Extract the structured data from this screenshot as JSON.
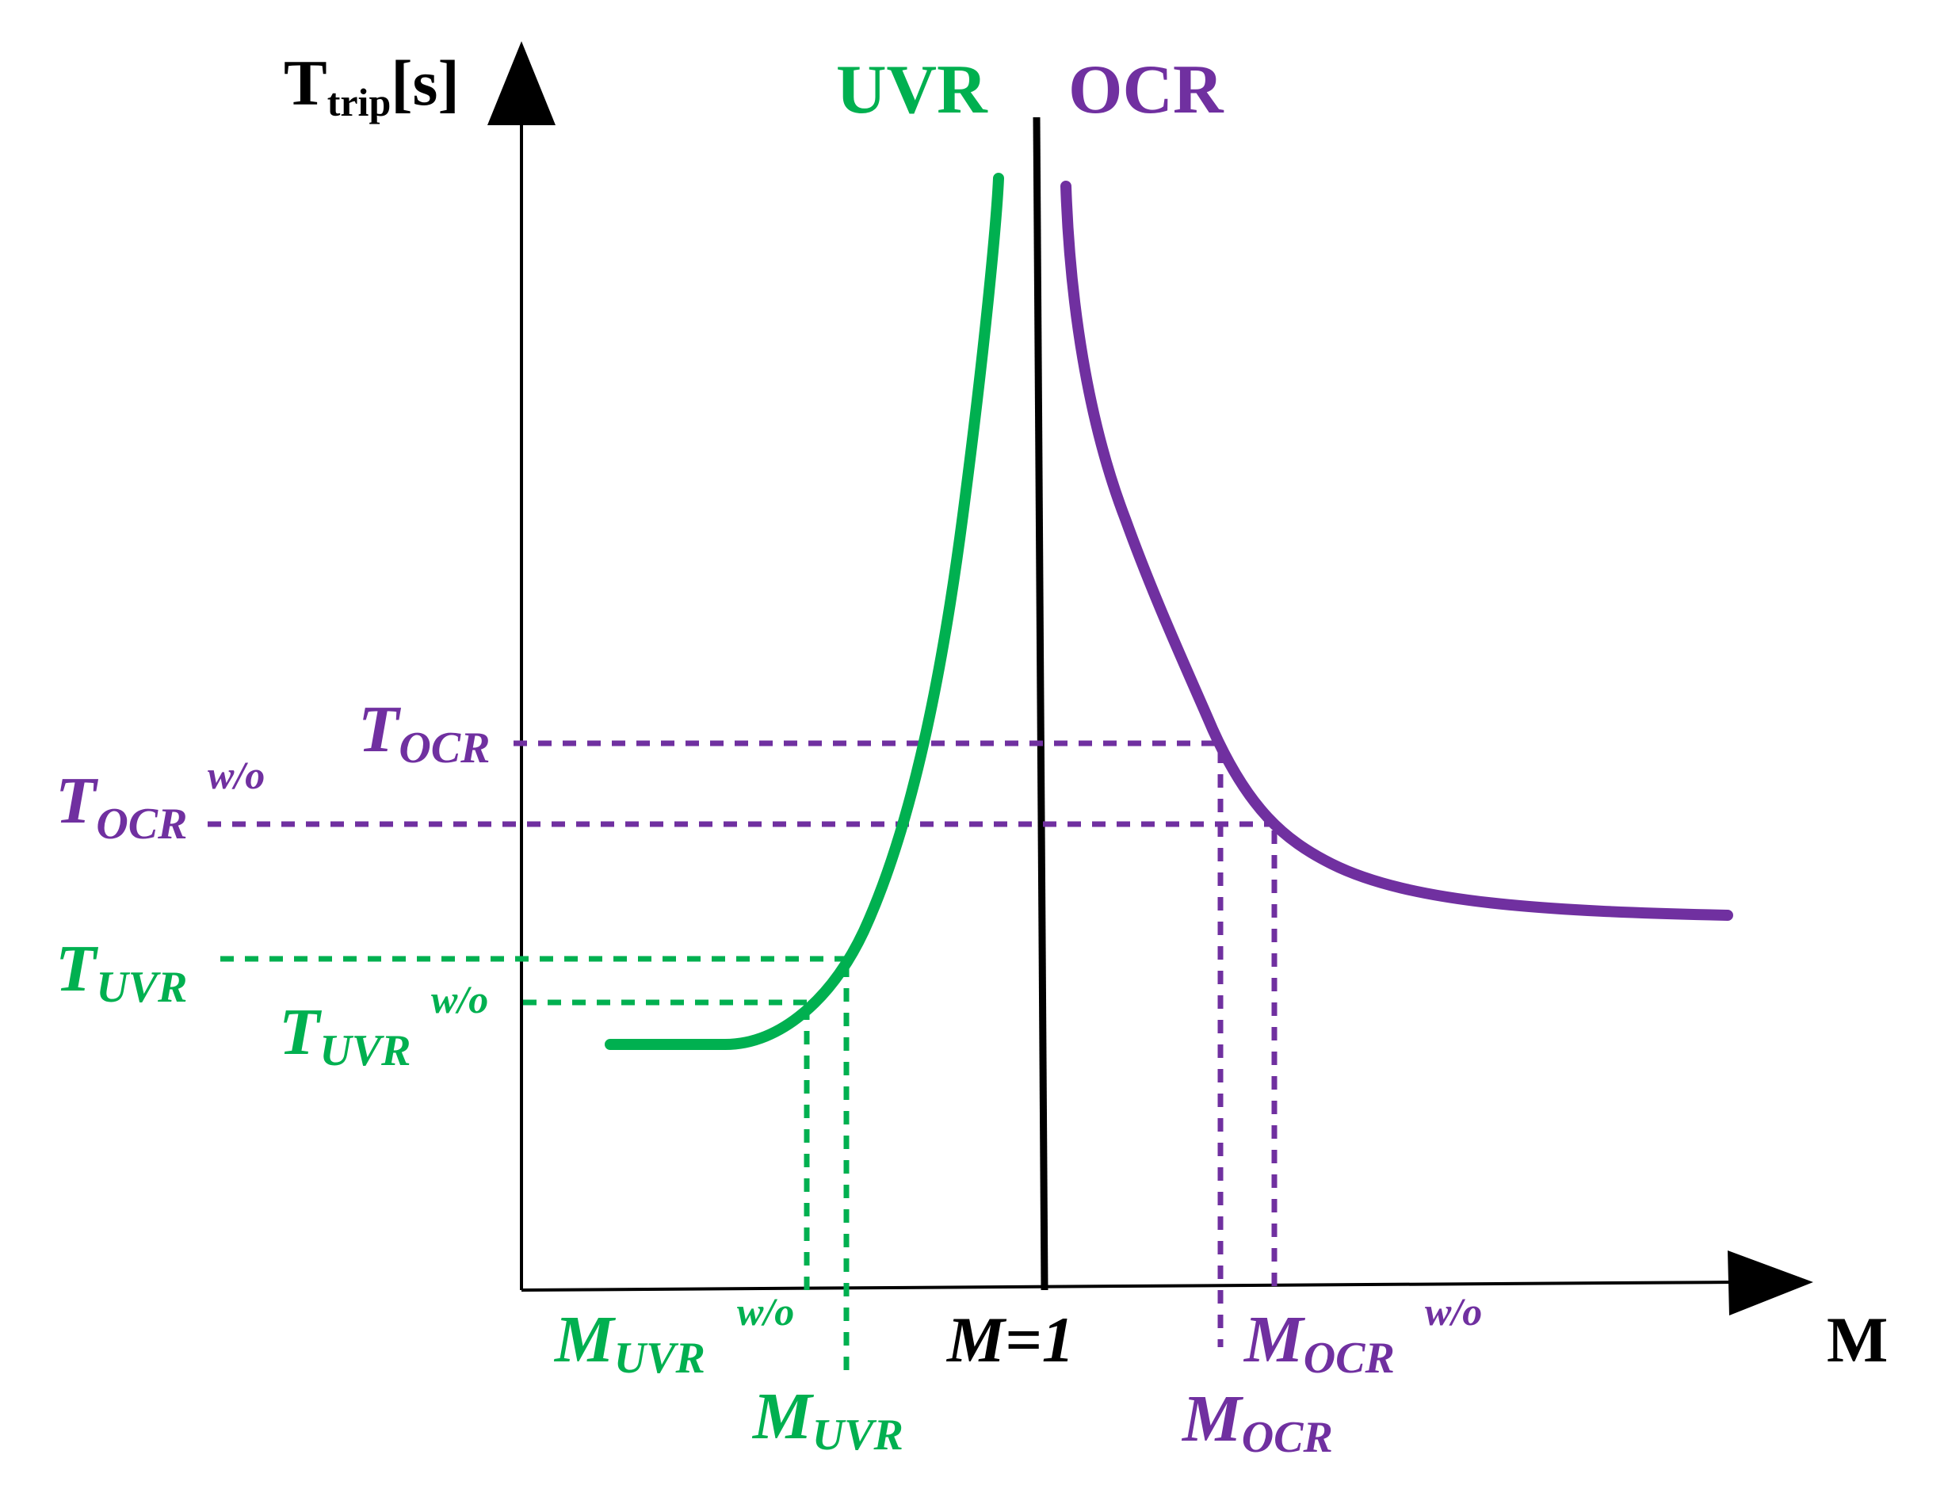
{
  "axes": {
    "y_label_main": "T",
    "y_label_sub": "trip",
    "y_label_unit": "[s]",
    "x_label": "M"
  },
  "relays": {
    "uvr": {
      "name": "UVR",
      "color": "#00b050"
    },
    "ocr": {
      "name": "OCR",
      "color": "#7030a0"
    }
  },
  "reference": {
    "label": "M=1",
    "color": "#000000"
  },
  "annotations": {
    "t_ocr": {
      "main": "T",
      "sub": "OCR",
      "sup": ""
    },
    "t_ocr_wo": {
      "main": "T",
      "sub": "OCR",
      "sup": "w/o"
    },
    "t_uvr": {
      "main": "T",
      "sub": "UVR",
      "sup": ""
    },
    "t_uvr_wo": {
      "main": "T",
      "sub": "UVR",
      "sup": "w/o"
    },
    "m_uvr_wo": {
      "main": "M",
      "sub": "UVR",
      "sup": "w/o"
    },
    "m_uvr": {
      "main": "M",
      "sub": "UVR",
      "sup": ""
    },
    "m_ocr_wo": {
      "main": "M",
      "sub": "OCR",
      "sup": "w/o"
    },
    "m_ocr": {
      "main": "M",
      "sub": "OCR",
      "sup": ""
    }
  }
}
